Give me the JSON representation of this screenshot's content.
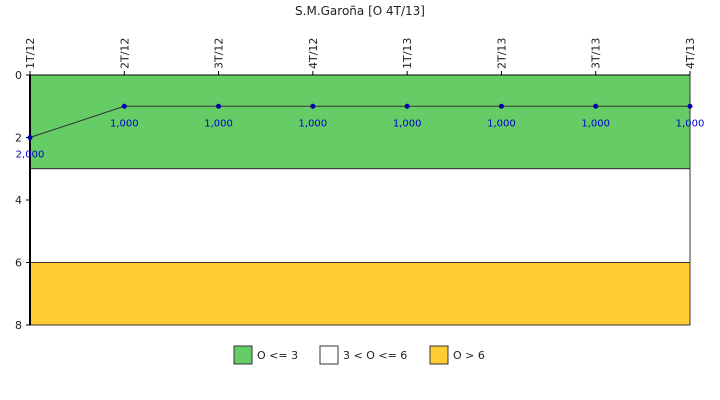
{
  "chart_data": {
    "type": "line",
    "title": "S.M.Garoña [O 4T/13]",
    "categories": [
      "1T/12",
      "2T/12",
      "3T/12",
      "4T/12",
      "1T/13",
      "2T/13",
      "3T/13",
      "4T/13"
    ],
    "series": [
      {
        "values": [
          2,
          1,
          1,
          1,
          1,
          1,
          1,
          1
        ],
        "color": "#333333",
        "marker_color": "#0000aa"
      }
    ],
    "data_labels": [
      "2,000",
      "1,000",
      "1,000",
      "1,000",
      "1,000",
      "1,000",
      "1,000",
      "1,000"
    ],
    "ylim": [
      0,
      8
    ],
    "y_inverted": true,
    "yticks": [
      {
        "value": 0,
        "label": "0"
      },
      {
        "value": 2,
        "label": "2"
      },
      {
        "value": 4,
        "label": "4"
      },
      {
        "value": 6,
        "label": "6"
      },
      {
        "value": 8,
        "label": "8"
      }
    ],
    "x_label_position": "top",
    "bands": [
      {
        "from": 0,
        "to": 3,
        "color": "#66cc66",
        "legend": "O <= 3"
      },
      {
        "from": 3,
        "to": 6,
        "color": "#ffffff",
        "legend": "3 < O <= 6"
      },
      {
        "from": 6,
        "to": 8,
        "color": "#ffcc33",
        "legend": "O > 6"
      }
    ],
    "legend_position": "bottom-center",
    "grid": false
  }
}
